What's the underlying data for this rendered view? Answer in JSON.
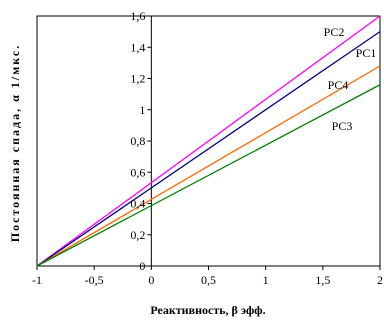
{
  "chart_data": {
    "type": "line",
    "xlabel": "Реактивность, β эфф.",
    "ylabel": "Постоянная спада, α 1/мкс.",
    "xlim": [
      -1,
      2
    ],
    "ylim": [
      0,
      1.6
    ],
    "x_ticks": [
      "-1",
      "-0,5",
      "0",
      "0,5",
      "1",
      "1,5",
      "2"
    ],
    "y_ticks": [
      "0",
      "0,2",
      "0,4",
      "0,6",
      "0,8",
      "1",
      "1,2",
      "1,4",
      "1,6"
    ],
    "x_tick_values": [
      -1,
      -0.5,
      0,
      0.5,
      1,
      1.5,
      2
    ],
    "y_tick_values": [
      0,
      0.2,
      0.4,
      0.6,
      0.8,
      1.0,
      1.2,
      1.4,
      1.6
    ],
    "grid": false,
    "series": [
      {
        "name": "PC2",
        "color": "#ff00ff",
        "x": [
          -1,
          2
        ],
        "y": [
          0,
          1.6
        ]
      },
      {
        "name": "PC1",
        "color": "#000080",
        "x": [
          -1,
          2
        ],
        "y": [
          0,
          1.5
        ]
      },
      {
        "name": "PC4",
        "color": "#ff6600",
        "x": [
          -1,
          2
        ],
        "y": [
          0,
          1.28
        ]
      },
      {
        "name": "PC3",
        "color": "#008000",
        "x": [
          -1,
          2
        ],
        "y": [
          0,
          1.16
        ]
      }
    ]
  }
}
